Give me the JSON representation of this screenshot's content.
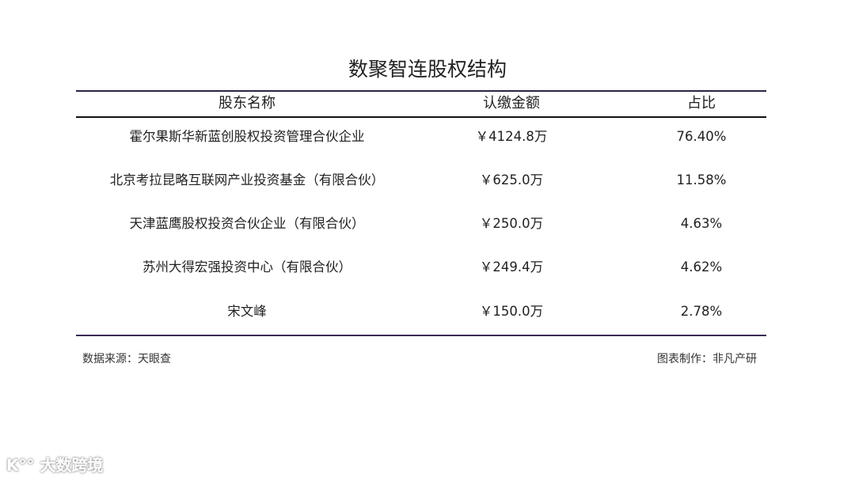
{
  "title": "数聚智连股权结构",
  "headers": [
    "股东名称",
    "认缴金额",
    "占比"
  ],
  "rows": [
    {
      "name": "霍尔果斯华新蓝创股权投资管理合伙企业",
      "amount": "￥4124.8万",
      "ratio": "76.40%"
    },
    {
      "name": "北京考拉昆略互联网产业投资基金（有限合伙）",
      "amount": "￥625.0万",
      "ratio": "11.58%"
    },
    {
      "name": "天津蓝鹰股权投资合伙企业（有限合伙）",
      "amount": "￥250.0万",
      "ratio": "4.63%"
    },
    {
      "name": "苏州大得宏强投资中心（有限合伙）",
      "amount": "￥249.4万",
      "ratio": "4.62%"
    },
    {
      "name": "宋文峰",
      "amount": "￥150.0万",
      "ratio": "2.78%"
    }
  ],
  "source": "数据来源：天眼查",
  "credit": "图表制作：非凡产研",
  "watermark": "大数跨境",
  "colors": {
    "rule_top": "#2e2348",
    "rule_bottom": "#3a2a55"
  }
}
